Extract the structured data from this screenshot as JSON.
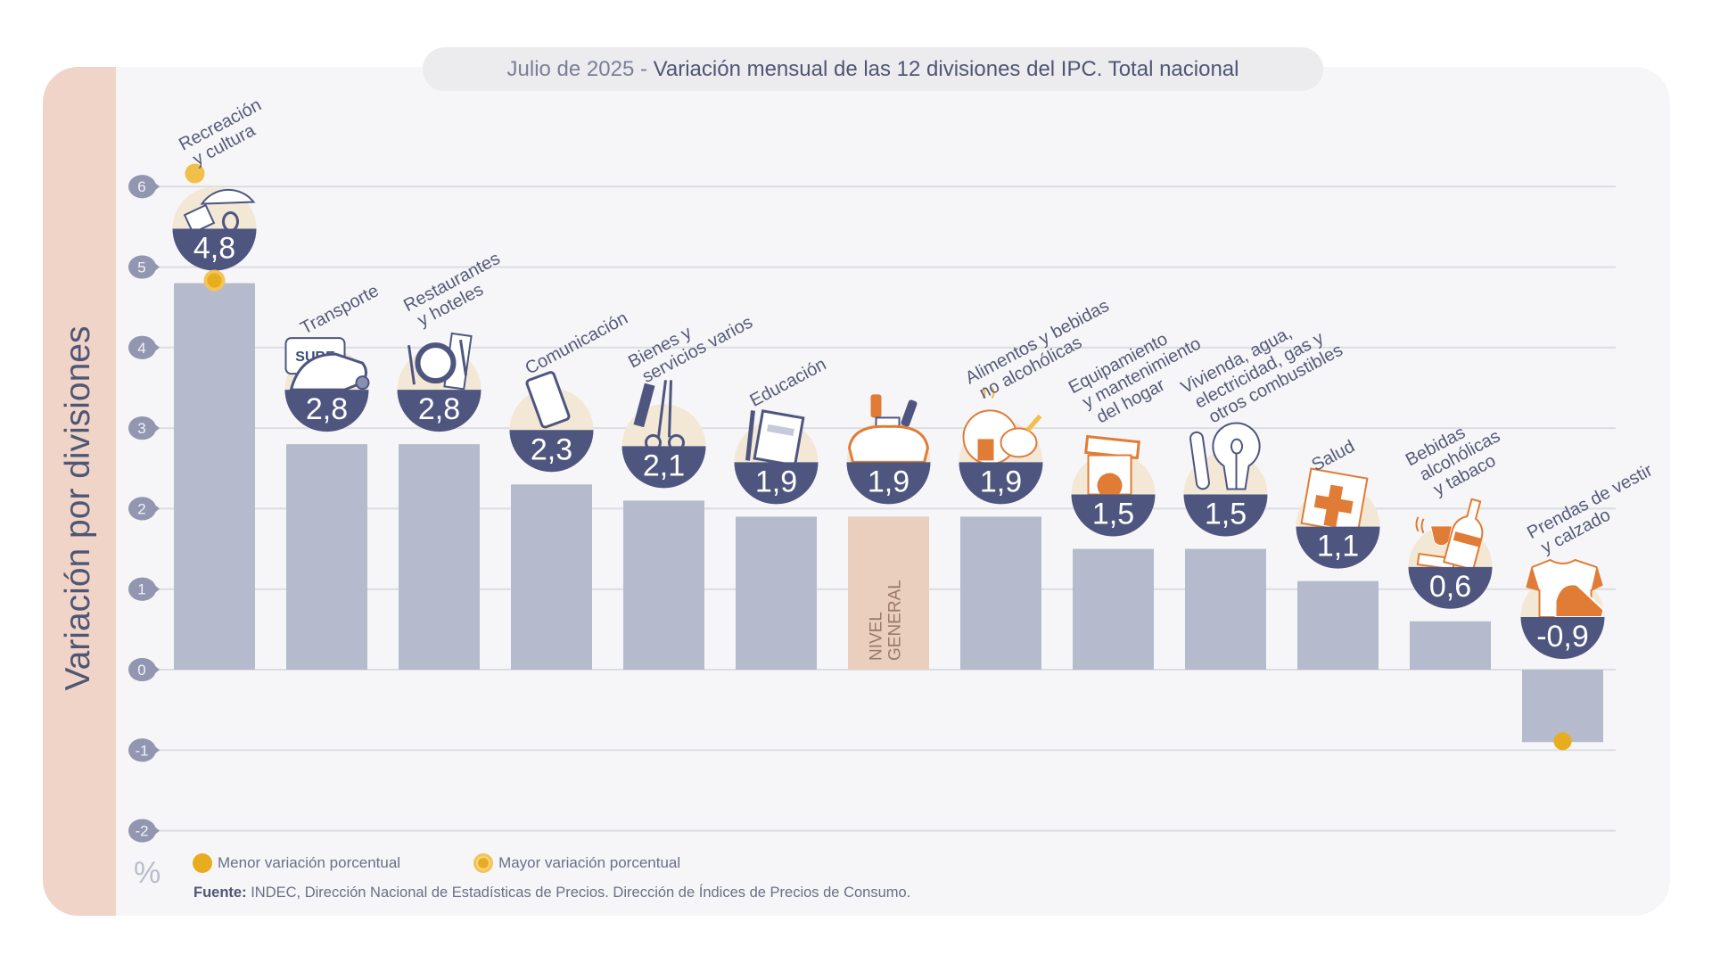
{
  "header": {
    "date": "Julio de 2025",
    "separator": " - ",
    "title": "Variación mensual de las 12 divisiones del IPC. Total nacional"
  },
  "y_axis_title": "Variación por divisiones",
  "unit_symbol": "%",
  "legend": {
    "min_label": "Menor variación porcentual",
    "max_label": "Mayor variación porcentual"
  },
  "source": {
    "label": "Fuente:",
    "text": "INDEC, Dirección Nacional de Estadísticas de Precios. Dirección de Índices de Precios de Consumo."
  },
  "colors": {
    "bar": "#b5bbcc",
    "general_bar": "#ebcfbe",
    "badge": "#4e5680",
    "badge_top": "#f3e7d6",
    "tick_badge": "#9296b0",
    "grid": "#dcdde3",
    "marker": "#e8ad1f",
    "icon_accent": "#e07c35",
    "label_text": "#555b78"
  },
  "chart_data": {
    "type": "bar",
    "title": "Julio de 2025 - Variación mensual de las 12 divisiones del IPC. Total nacional",
    "xlabel": "",
    "ylabel": "Variación por divisiones",
    "unit": "%",
    "ylim": [
      -2,
      6
    ],
    "yticks": [
      6,
      5,
      4,
      3,
      2,
      1,
      0,
      -1,
      -2
    ],
    "grid": true,
    "legend_position": "bottom-left",
    "categories": [
      [
        "Recreación",
        "y cultura"
      ],
      [
        "Transporte"
      ],
      [
        "Restaurantes",
        "y hoteles"
      ],
      [
        "Comunicación"
      ],
      [
        "Bienes y",
        "servicios varios"
      ],
      [
        "Educación"
      ],
      [
        "NIVEL",
        "GENERAL"
      ],
      [
        "Alimentos y bebidas",
        "no alcohólicas"
      ],
      [
        "Equipamiento",
        "y mantenimiento",
        "del hogar"
      ],
      [
        "Vivienda, agua,",
        "electricidad, gas y",
        "otros combustibles"
      ],
      [
        "Salud"
      ],
      [
        "Bebidas",
        "alcohólicas",
        "y tabaco"
      ],
      [
        "Prendas de vestir",
        "y calzado"
      ]
    ],
    "values": [
      4.8,
      2.8,
      2.8,
      2.3,
      2.1,
      1.9,
      1.9,
      1.9,
      1.5,
      1.5,
      1.1,
      0.6,
      -0.9
    ],
    "value_labels": [
      "4,8",
      "2,8",
      "2,8",
      "2,3",
      "2,1",
      "1,9",
      "1,9",
      "1,9",
      "1,5",
      "1,5",
      "1,1",
      "0,6",
      "-0,9"
    ],
    "icons": [
      "beach-umbrella-icon",
      "bus-card-icon",
      "plate-cutlery-icon",
      "smartphone-icon",
      "comb-scissors-icon",
      "notebook-pencil-icon",
      "shopping-bag-icon",
      "roast-chicken-icon",
      "washing-machine-icon",
      "lightbulb-plug-icon",
      "first-aid-icon",
      "wine-bottle-icon",
      "tshirt-shoe-icon"
    ],
    "highlight": {
      "general_index": 6,
      "max_index": 0,
      "min_index": 12
    },
    "general_bar_label": [
      "NIVEL",
      "GENERAL"
    ]
  }
}
